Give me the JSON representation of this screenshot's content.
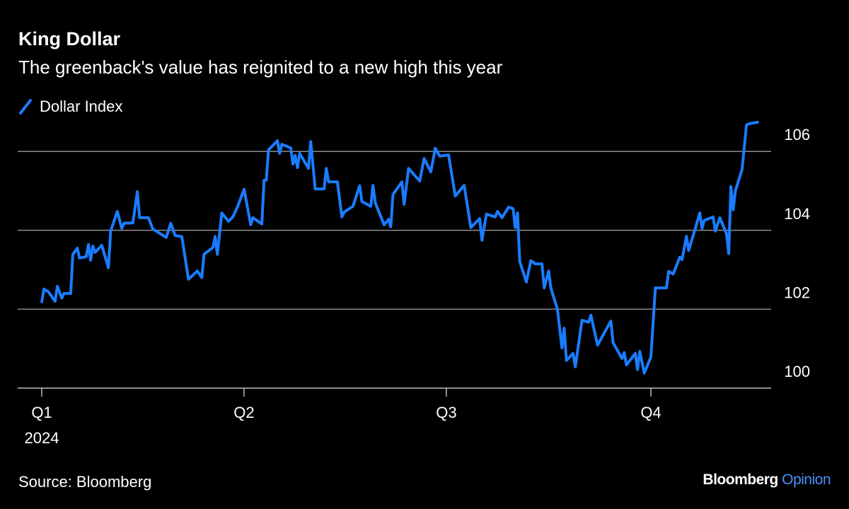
{
  "title": "King Dollar",
  "subtitle": "The greenback's value has reignited to a new high this year",
  "source": "Source: Bloomberg",
  "logo": {
    "brand": "Bloomberg",
    "section": "Opinion"
  },
  "colors": {
    "line": "#1a7cff",
    "grid": "#8c8c8c",
    "background": "#000000",
    "logo_accent": "#4a90ff"
  },
  "chart_data": {
    "type": "line",
    "title": "King Dollar",
    "subtitle": "The greenback's value has reignited to a new high this year",
    "legend_position": "top-left",
    "grid": true,
    "ylim": [
      100,
      106.8
    ],
    "xlim": [
      "2024-01-01",
      "2024-11-25"
    ],
    "y_ticks": [
      "100",
      "102",
      "104",
      "106"
    ],
    "x_ticks": [
      {
        "date": "2024-01-01",
        "label": "Q1",
        "sublabel": "2024"
      },
      {
        "date": "2024-04-01",
        "label": "Q2"
      },
      {
        "date": "2024-07-01",
        "label": "Q3"
      },
      {
        "date": "2024-10-01",
        "label": "Q4"
      }
    ],
    "series": [
      {
        "name": "Dollar Index",
        "points": [
          [
            "2024-01-01",
            102.19
          ],
          [
            "2024-01-02",
            102.51
          ],
          [
            "2024-01-04",
            102.44
          ],
          [
            "2024-01-07",
            102.2
          ],
          [
            "2024-01-08",
            102.58
          ],
          [
            "2024-01-10",
            102.28
          ],
          [
            "2024-01-11",
            102.4
          ],
          [
            "2024-01-14",
            102.4
          ],
          [
            "2024-01-15",
            103.39
          ],
          [
            "2024-01-17",
            103.55
          ],
          [
            "2024-01-18",
            103.3
          ],
          [
            "2024-01-21",
            103.33
          ],
          [
            "2024-01-22",
            103.64
          ],
          [
            "2024-01-23",
            103.24
          ],
          [
            "2024-01-24",
            103.6
          ],
          [
            "2024-01-25",
            103.44
          ],
          [
            "2024-01-28",
            103.62
          ],
          [
            "2024-01-31",
            103.05
          ],
          [
            "2024-02-01",
            103.98
          ],
          [
            "2024-02-04",
            104.48
          ],
          [
            "2024-02-06",
            104.05
          ],
          [
            "2024-02-07",
            104.18
          ],
          [
            "2024-02-11",
            104.19
          ],
          [
            "2024-02-13",
            104.98
          ],
          [
            "2024-02-14",
            104.32
          ],
          [
            "2024-02-18",
            104.32
          ],
          [
            "2024-02-20",
            104.03
          ],
          [
            "2024-02-26",
            103.82
          ],
          [
            "2024-02-28",
            104.18
          ],
          [
            "2024-03-01",
            103.87
          ],
          [
            "2024-03-04",
            103.84
          ],
          [
            "2024-03-07",
            102.76
          ],
          [
            "2024-03-11",
            102.97
          ],
          [
            "2024-03-13",
            102.8
          ],
          [
            "2024-03-14",
            103.39
          ],
          [
            "2024-03-18",
            103.57
          ],
          [
            "2024-03-19",
            103.84
          ],
          [
            "2024-03-20",
            103.39
          ],
          [
            "2024-03-22",
            104.44
          ],
          [
            "2024-03-25",
            104.23
          ],
          [
            "2024-03-27",
            104.34
          ],
          [
            "2024-03-29",
            104.59
          ],
          [
            "2024-04-01",
            105.04
          ],
          [
            "2024-04-04",
            104.14
          ],
          [
            "2024-04-05",
            104.32
          ],
          [
            "2024-04-09",
            104.16
          ],
          [
            "2024-04-10",
            105.27
          ],
          [
            "2024-04-11",
            105.27
          ],
          [
            "2024-04-12",
            106.04
          ],
          [
            "2024-04-16",
            106.27
          ],
          [
            "2024-04-17",
            105.95
          ],
          [
            "2024-04-18",
            106.18
          ],
          [
            "2024-04-22",
            106.09
          ],
          [
            "2024-04-23",
            105.68
          ],
          [
            "2024-04-24",
            105.9
          ],
          [
            "2024-04-25",
            105.59
          ],
          [
            "2024-04-26",
            105.95
          ],
          [
            "2024-04-30",
            105.57
          ],
          [
            "2024-05-01",
            106.25
          ],
          [
            "2024-05-03",
            105.05
          ],
          [
            "2024-05-07",
            105.05
          ],
          [
            "2024-05-08",
            105.57
          ],
          [
            "2024-05-09",
            105.23
          ],
          [
            "2024-05-13",
            105.23
          ],
          [
            "2024-05-15",
            104.34
          ],
          [
            "2024-05-16",
            104.46
          ],
          [
            "2024-05-20",
            104.61
          ],
          [
            "2024-05-23",
            105.13
          ],
          [
            "2024-05-24",
            104.73
          ],
          [
            "2024-05-28",
            104.61
          ],
          [
            "2024-05-29",
            105.14
          ],
          [
            "2024-05-30",
            104.7
          ],
          [
            "2024-06-03",
            104.14
          ],
          [
            "2024-06-05",
            104.28
          ],
          [
            "2024-06-06",
            104.09
          ],
          [
            "2024-06-07",
            104.91
          ],
          [
            "2024-06-11",
            105.23
          ],
          [
            "2024-06-12",
            104.66
          ],
          [
            "2024-06-14",
            105.57
          ],
          [
            "2024-06-19",
            105.25
          ],
          [
            "2024-06-21",
            105.82
          ],
          [
            "2024-06-24",
            105.48
          ],
          [
            "2024-06-26",
            106.08
          ],
          [
            "2024-06-28",
            105.88
          ],
          [
            "2024-07-02",
            105.91
          ],
          [
            "2024-07-05",
            104.87
          ],
          [
            "2024-07-09",
            105.14
          ],
          [
            "2024-07-12",
            104.07
          ],
          [
            "2024-07-16",
            104.3
          ],
          [
            "2024-07-17",
            103.75
          ],
          [
            "2024-07-19",
            104.41
          ],
          [
            "2024-07-23",
            104.34
          ],
          [
            "2024-07-24",
            104.48
          ],
          [
            "2024-07-26",
            104.32
          ],
          [
            "2024-07-29",
            104.59
          ],
          [
            "2024-07-31",
            104.55
          ],
          [
            "2024-08-01",
            104.07
          ],
          [
            "2024-08-02",
            104.44
          ],
          [
            "2024-08-03",
            103.21
          ],
          [
            "2024-08-06",
            102.69
          ],
          [
            "2024-08-08",
            103.23
          ],
          [
            "2024-08-10",
            103.15
          ],
          [
            "2024-08-13",
            103.15
          ],
          [
            "2024-08-14",
            102.54
          ],
          [
            "2024-08-16",
            102.97
          ],
          [
            "2024-08-17",
            102.54
          ],
          [
            "2024-08-20",
            101.99
          ],
          [
            "2024-08-22",
            101.02
          ],
          [
            "2024-08-23",
            101.52
          ],
          [
            "2024-08-24",
            100.7
          ],
          [
            "2024-08-27",
            100.88
          ],
          [
            "2024-08-28",
            100.54
          ],
          [
            "2024-08-31",
            101.72
          ],
          [
            "2024-09-03",
            101.67
          ],
          [
            "2024-09-04",
            101.85
          ],
          [
            "2024-09-07",
            101.09
          ],
          [
            "2024-09-13",
            101.7
          ],
          [
            "2024-09-14",
            101.15
          ],
          [
            "2024-09-18",
            100.75
          ],
          [
            "2024-09-19",
            100.9
          ],
          [
            "2024-09-20",
            100.59
          ],
          [
            "2024-09-24",
            100.88
          ],
          [
            "2024-09-25",
            100.47
          ],
          [
            "2024-09-26",
            100.93
          ],
          [
            "2024-09-28",
            100.38
          ],
          [
            "2024-10-01",
            100.79
          ],
          [
            "2024-10-03",
            102.54
          ],
          [
            "2024-10-08",
            102.54
          ],
          [
            "2024-10-09",
            102.96
          ],
          [
            "2024-10-11",
            102.89
          ],
          [
            "2024-10-14",
            103.32
          ],
          [
            "2024-10-15",
            103.26
          ],
          [
            "2024-10-17",
            103.85
          ],
          [
            "2024-10-18",
            103.49
          ],
          [
            "2024-10-21",
            104.05
          ],
          [
            "2024-10-23",
            104.44
          ],
          [
            "2024-10-24",
            104.05
          ],
          [
            "2024-10-25",
            104.25
          ],
          [
            "2024-10-29",
            104.34
          ],
          [
            "2024-10-30",
            103.98
          ],
          [
            "2024-11-01",
            104.32
          ],
          [
            "2024-11-04",
            103.92
          ],
          [
            "2024-11-05",
            103.41
          ],
          [
            "2024-11-06",
            105.11
          ],
          [
            "2024-11-07",
            104.52
          ],
          [
            "2024-11-08",
            105.0
          ],
          [
            "2024-11-11",
            105.54
          ],
          [
            "2024-11-13",
            106.67
          ],
          [
            "2024-11-14",
            106.7
          ],
          [
            "2024-11-18",
            106.74
          ]
        ]
      }
    ]
  }
}
